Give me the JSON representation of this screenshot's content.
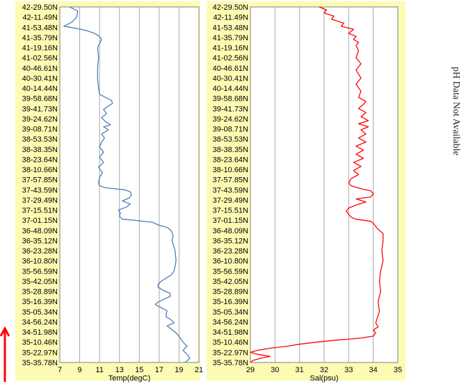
{
  "side_note": "pH Data Not Available",
  "colors": {
    "panel_bg": "#fdfbb3",
    "temp_line": "#4a7ebb",
    "sal_line": "#ff0000",
    "arrow": "#ff0000",
    "grid": "#a6a6a6"
  },
  "chart_data": [
    {
      "type": "line",
      "xlabel": "Temp(degC)",
      "ylabel": "",
      "xlim": [
        7,
        21
      ],
      "x_ticks": [
        7,
        9,
        11,
        13,
        15,
        17,
        19,
        21
      ],
      "grid": "vertical",
      "y_tick_labels": [
        "42-29.50N",
        "42-11.49N",
        "41-53.48N",
        "41-35.79N",
        "41-19.16N",
        "41-02.56N",
        "40-46.61N",
        "40-30.41N",
        "40-14.44N",
        "39-58.68N",
        "39-41.73N",
        "39-24.62N",
        "39-08.71N",
        "38-53.53N",
        "38-38.35N",
        "38-23.64N",
        "38-10.66N",
        "37-57.85N",
        "37-43.59N",
        "37-29.49N",
        "37-15.51N",
        "37-01.15N",
        "36-48.09N",
        "36-35.12N",
        "36-23.28N",
        "36-10.80N",
        "35-56.59N",
        "35-42.05N",
        "35-28.89N",
        "35-16.39N",
        "35-05.34N",
        "34-56.24N",
        "34-51.98N",
        "35-10.46N",
        "35-22.97N",
        "35-35.78N"
      ],
      "series": [
        {
          "values": [
            {
              "pos": 0,
              "x": 8.0
            },
            {
              "pos": 0.4,
              "x": 8.8
            },
            {
              "pos": 1,
              "x": 8.7
            },
            {
              "pos": 1.5,
              "x": 8.2
            },
            {
              "pos": 1.9,
              "x": 7.4
            },
            {
              "pos": 2.1,
              "x": 8.6
            },
            {
              "pos": 2.3,
              "x": 9.6
            },
            {
              "pos": 2.6,
              "x": 10.5
            },
            {
              "pos": 2.9,
              "x": 11.0
            },
            {
              "pos": 3.2,
              "x": 11.2
            },
            {
              "pos": 3.6,
              "x": 11.0
            },
            {
              "pos": 4,
              "x": 10.8
            },
            {
              "pos": 5,
              "x": 10.9
            },
            {
              "pos": 6,
              "x": 10.8
            },
            {
              "pos": 7,
              "x": 10.8
            },
            {
              "pos": 8,
              "x": 10.9
            },
            {
              "pos": 8.6,
              "x": 11.0
            },
            {
              "pos": 8.9,
              "x": 11.6
            },
            {
              "pos": 9.2,
              "x": 12.2
            },
            {
              "pos": 9.5,
              "x": 12.3
            },
            {
              "pos": 9.8,
              "x": 11.8
            },
            {
              "pos": 10.1,
              "x": 11.4
            },
            {
              "pos": 10.5,
              "x": 11.7
            },
            {
              "pos": 10.9,
              "x": 11.2
            },
            {
              "pos": 11.3,
              "x": 11.6
            },
            {
              "pos": 11.6,
              "x": 12.1
            },
            {
              "pos": 11.8,
              "x": 11.4
            },
            {
              "pos": 12.1,
              "x": 11.9
            },
            {
              "pos": 12.5,
              "x": 11.2
            },
            {
              "pos": 12.9,
              "x": 11.5
            },
            {
              "pos": 13.3,
              "x": 11.2
            },
            {
              "pos": 13.8,
              "x": 11.0
            },
            {
              "pos": 14.3,
              "x": 11.4
            },
            {
              "pos": 14.8,
              "x": 11.0
            },
            {
              "pos": 15.3,
              "x": 11.4
            },
            {
              "pos": 15.8,
              "x": 10.9
            },
            {
              "pos": 16.3,
              "x": 11.3
            },
            {
              "pos": 16.8,
              "x": 11.0
            },
            {
              "pos": 17.3,
              "x": 10.9
            },
            {
              "pos": 17.6,
              "x": 11.0
            },
            {
              "pos": 17.8,
              "x": 11.6
            },
            {
              "pos": 18,
              "x": 13.5
            },
            {
              "pos": 18.2,
              "x": 14.1
            },
            {
              "pos": 18.5,
              "x": 14.2
            },
            {
              "pos": 18.8,
              "x": 14.0
            },
            {
              "pos": 19.1,
              "x": 13.3
            },
            {
              "pos": 19.4,
              "x": 14.1
            },
            {
              "pos": 19.7,
              "x": 13.7
            },
            {
              "pos": 20,
              "x": 12.9
            },
            {
              "pos": 20.3,
              "x": 13.1
            },
            {
              "pos": 20.6,
              "x": 13.0
            },
            {
              "pos": 20.9,
              "x": 13.3
            },
            {
              "pos": 21,
              "x": 14.5
            },
            {
              "pos": 21.2,
              "x": 16.3
            },
            {
              "pos": 21.5,
              "x": 17.0
            },
            {
              "pos": 21.7,
              "x": 17.8
            },
            {
              "pos": 22,
              "x": 18.2
            },
            {
              "pos": 22.5,
              "x": 18.4
            },
            {
              "pos": 23,
              "x": 18.3
            },
            {
              "pos": 24,
              "x": 18.6
            },
            {
              "pos": 25,
              "x": 18.7
            },
            {
              "pos": 26,
              "x": 18.5
            },
            {
              "pos": 26.4,
              "x": 18.2
            },
            {
              "pos": 26.7,
              "x": 17.7
            },
            {
              "pos": 27,
              "x": 17.2
            },
            {
              "pos": 27.3,
              "x": 16.9
            },
            {
              "pos": 27.6,
              "x": 16.9
            },
            {
              "pos": 27.9,
              "x": 17.4
            },
            {
              "pos": 28.2,
              "x": 18.1
            },
            {
              "pos": 28.5,
              "x": 18.1
            },
            {
              "pos": 28.8,
              "x": 17.4
            },
            {
              "pos": 29.1,
              "x": 16.8
            },
            {
              "pos": 29.3,
              "x": 16.6
            },
            {
              "pos": 29.6,
              "x": 17.2
            },
            {
              "pos": 29.9,
              "x": 17.8
            },
            {
              "pos": 30.2,
              "x": 17.7
            },
            {
              "pos": 30.5,
              "x": 17.7
            },
            {
              "pos": 30.8,
              "x": 18.2
            },
            {
              "pos": 31.1,
              "x": 18.5
            },
            {
              "pos": 31.4,
              "x": 17.8
            },
            {
              "pos": 31.7,
              "x": 18.2
            },
            {
              "pos": 32,
              "x": 18.6
            },
            {
              "pos": 32.3,
              "x": 18.9
            },
            {
              "pos": 32.7,
              "x": 19.2
            },
            {
              "pos": 33,
              "x": 19.4
            },
            {
              "pos": 33.4,
              "x": 19.8
            },
            {
              "pos": 33.8,
              "x": 19.4
            },
            {
              "pos": 34.2,
              "x": 19.8
            },
            {
              "pos": 34.6,
              "x": 20.1
            },
            {
              "pos": 35,
              "x": 19.6
            }
          ]
        }
      ]
    },
    {
      "type": "line",
      "xlabel": "Sal(psu)",
      "ylabel": "",
      "xlim": [
        29,
        35
      ],
      "x_ticks": [
        29,
        30,
        31,
        32,
        33,
        34,
        35
      ],
      "grid": "vertical",
      "y_tick_labels": [
        "42-29.50N",
        "42-11.49N",
        "41-53.48N",
        "41-35.79N",
        "41-19.16N",
        "41-02.56N",
        "40-46.61N",
        "40-30.41N",
        "40-14.44N",
        "39-58.68N",
        "39-41.73N",
        "39-24.62N",
        "39-08.71N",
        "38-53.53N",
        "38-38.35N",
        "38-23.64N",
        "38-10.66N",
        "37-57.85N",
        "37-43.59N",
        "37-29.49N",
        "37-15.51N",
        "37-01.15N",
        "36-48.09N",
        "36-35.12N",
        "36-23.28N",
        "36-10.80N",
        "35-56.59N",
        "35-42.05N",
        "35-28.89N",
        "35-16.39N",
        "35-05.34N",
        "34-56.24N",
        "34-51.98N",
        "35-10.46N",
        "35-22.97N",
        "35-35.78N"
      ],
      "series": [
        {
          "values": [
            {
              "pos": 0,
              "x": 31.8
            },
            {
              "pos": 0.3,
              "x": 32.1
            },
            {
              "pos": 0.6,
              "x": 32.0
            },
            {
              "pos": 0.9,
              "x": 32.4
            },
            {
              "pos": 1.2,
              "x": 32.3
            },
            {
              "pos": 1.6,
              "x": 32.8
            },
            {
              "pos": 1.9,
              "x": 32.7
            },
            {
              "pos": 2.2,
              "x": 33.2
            },
            {
              "pos": 2.6,
              "x": 33.0
            },
            {
              "pos": 2.9,
              "x": 33.3
            },
            {
              "pos": 3.2,
              "x": 33.2
            },
            {
              "pos": 3.5,
              "x": 33.4
            },
            {
              "pos": 3.8,
              "x": 33.3
            },
            {
              "pos": 4.3,
              "x": 33.4
            },
            {
              "pos": 5,
              "x": 33.3
            },
            {
              "pos": 5.6,
              "x": 33.5
            },
            {
              "pos": 6.2,
              "x": 33.3
            },
            {
              "pos": 7,
              "x": 33.5
            },
            {
              "pos": 7.6,
              "x": 33.3
            },
            {
              "pos": 8.3,
              "x": 33.5
            },
            {
              "pos": 8.9,
              "x": 33.4
            },
            {
              "pos": 9.3,
              "x": 33.7
            },
            {
              "pos": 9.6,
              "x": 33.6
            },
            {
              "pos": 10,
              "x": 33.4
            },
            {
              "pos": 10.4,
              "x": 33.7
            },
            {
              "pos": 10.8,
              "x": 33.5
            },
            {
              "pos": 11.2,
              "x": 33.8
            },
            {
              "pos": 11.5,
              "x": 33.4
            },
            {
              "pos": 11.8,
              "x": 33.8
            },
            {
              "pos": 12.1,
              "x": 33.5
            },
            {
              "pos": 12.5,
              "x": 33.7
            },
            {
              "pos": 12.9,
              "x": 33.4
            },
            {
              "pos": 13.3,
              "x": 33.7
            },
            {
              "pos": 13.7,
              "x": 33.3
            },
            {
              "pos": 14.1,
              "x": 33.6
            },
            {
              "pos": 14.5,
              "x": 33.3
            },
            {
              "pos": 14.9,
              "x": 33.6
            },
            {
              "pos": 15.3,
              "x": 33.2
            },
            {
              "pos": 15.7,
              "x": 33.5
            },
            {
              "pos": 16.1,
              "x": 33.2
            },
            {
              "pos": 16.5,
              "x": 33.4
            },
            {
              "pos": 16.9,
              "x": 33.1
            },
            {
              "pos": 17.3,
              "x": 33.0
            },
            {
              "pos": 17.6,
              "x": 33.1
            },
            {
              "pos": 17.9,
              "x": 33.5
            },
            {
              "pos": 18.1,
              "x": 33.9
            },
            {
              "pos": 18.4,
              "x": 34.0
            },
            {
              "pos": 18.7,
              "x": 33.9
            },
            {
              "pos": 18.9,
              "x": 33.3
            },
            {
              "pos": 19.2,
              "x": 33.7
            },
            {
              "pos": 19.5,
              "x": 33.3
            },
            {
              "pos": 19.8,
              "x": 33.0
            },
            {
              "pos": 20.1,
              "x": 32.9
            },
            {
              "pos": 20.4,
              "x": 33.0
            },
            {
              "pos": 20.7,
              "x": 33.1
            },
            {
              "pos": 20.9,
              "x": 33.3
            },
            {
              "pos": 21.1,
              "x": 33.9
            },
            {
              "pos": 21.3,
              "x": 34.0
            },
            {
              "pos": 21.6,
              "x": 34.1
            },
            {
              "pos": 21.9,
              "x": 34.2
            },
            {
              "pos": 22.3,
              "x": 34.4
            },
            {
              "pos": 23,
              "x": 34.4
            },
            {
              "pos": 24,
              "x": 34.35
            },
            {
              "pos": 25,
              "x": 34.4
            },
            {
              "pos": 26,
              "x": 34.3
            },
            {
              "pos": 27,
              "x": 34.25
            },
            {
              "pos": 28,
              "x": 34.3
            },
            {
              "pos": 29,
              "x": 34.2
            },
            {
              "pos": 30,
              "x": 34.25
            },
            {
              "pos": 30.7,
              "x": 34.15
            },
            {
              "pos": 31.1,
              "x": 34.1
            },
            {
              "pos": 31.5,
              "x": 34.2
            },
            {
              "pos": 31.8,
              "x": 34.0
            },
            {
              "pos": 32.1,
              "x": 34.1
            },
            {
              "pos": 32.4,
              "x": 34.0
            },
            {
              "pos": 32.6,
              "x": 33.5
            },
            {
              "pos": 32.8,
              "x": 32.5
            },
            {
              "pos": 33,
              "x": 31.7
            },
            {
              "pos": 33.2,
              "x": 31.0
            },
            {
              "pos": 33.4,
              "x": 30.5
            },
            {
              "pos": 33.6,
              "x": 29.8
            },
            {
              "pos": 33.8,
              "x": 29.3
            },
            {
              "pos": 34,
              "x": 29.0
            },
            {
              "pos": 34.2,
              "x": 29.3
            },
            {
              "pos": 34.4,
              "x": 29.8
            },
            {
              "pos": 34.6,
              "x": 29.4
            },
            {
              "pos": 34.8,
              "x": 29.1
            },
            {
              "pos": 35,
              "x": 29.0
            }
          ]
        }
      ]
    }
  ]
}
